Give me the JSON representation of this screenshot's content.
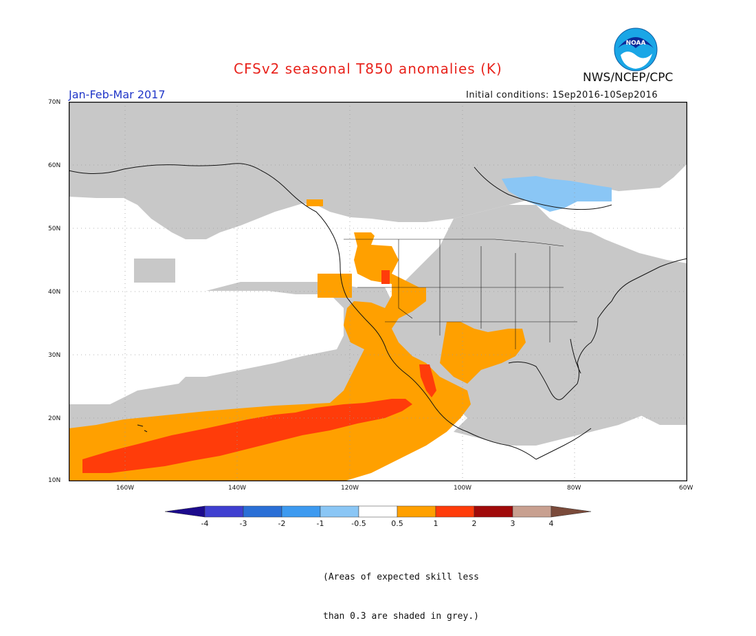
{
  "title": "CFSv2 seasonal T850 anomalies (K)",
  "agency": "NWS/NCEP/CPC",
  "logo_text": "NOAA",
  "period": "Jan-Feb-Mar 2017",
  "initial_conditions": "Initial conditions:  1Sep2016-10Sep2016",
  "note_line1": "(Areas of expected skill less",
  "note_line2": "than 0.3 are shaded in grey.)",
  "lat_labels": [
    "70N",
    "60N",
    "50N",
    "40N",
    "30N",
    "20N",
    "10N"
  ],
  "lon_labels": [
    "160W",
    "140W",
    "120W",
    "100W",
    "80W",
    "60W"
  ],
  "colorbar": {
    "labels": [
      "-4",
      "-3",
      "-2",
      "-1",
      "-0.5",
      "0.5",
      "1",
      "2",
      "3",
      "4"
    ],
    "colors": [
      "#1c0a8c",
      "#3f3fd0",
      "#2a6fd6",
      "#3d9af0",
      "#8ac6f5",
      "#ffffff",
      "#ffa000",
      "#ff3c0a",
      "#a00a0a",
      "#c8a090",
      "#7a4a3a"
    ]
  },
  "colors": {
    "grey_skill": "#c8c8c8",
    "anom_0_5_1": "#ffa000",
    "anom_1_2": "#ff3c0a",
    "anom_neg_0_5_1": "#8ac6f5"
  },
  "map": {
    "lon_range": [
      -170,
      -60
    ],
    "lat_range": [
      10,
      70
    ],
    "grid": true
  }
}
